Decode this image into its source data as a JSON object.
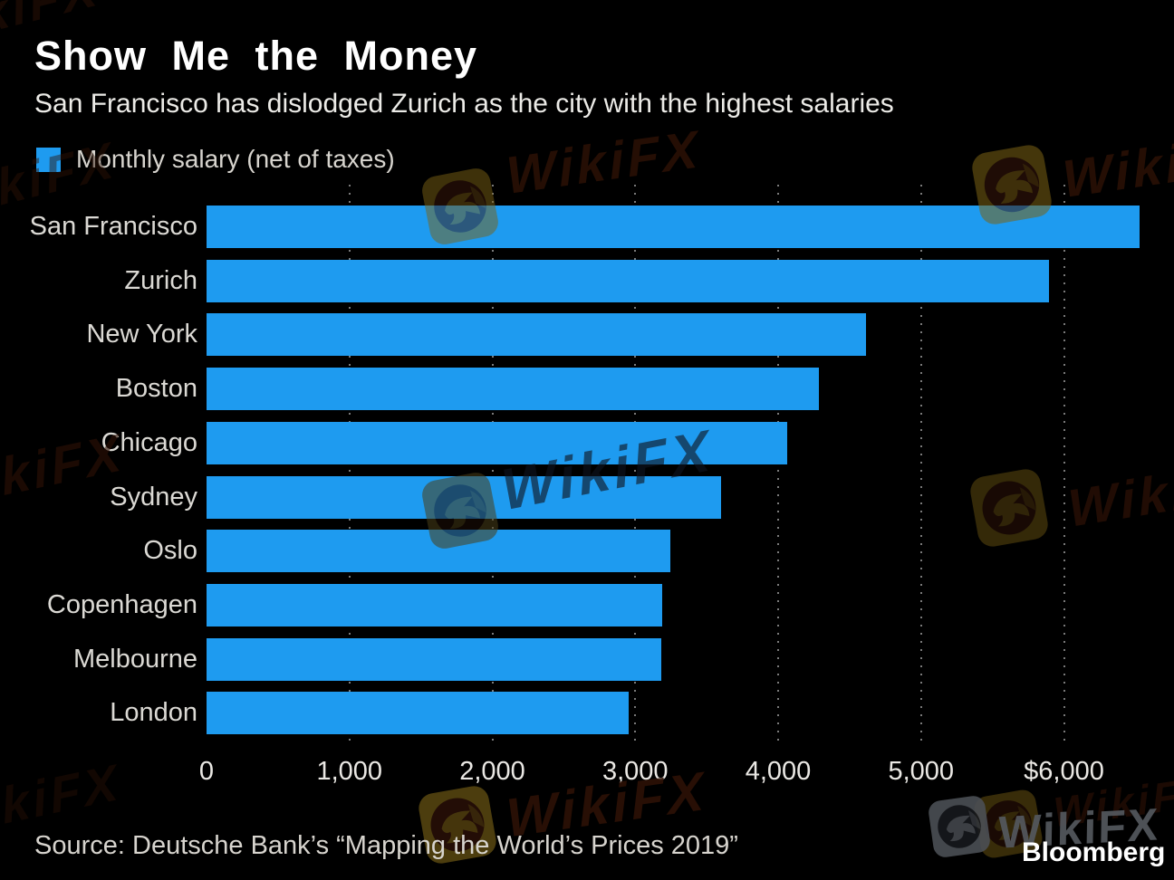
{
  "header": {
    "title": "Show Me the Money",
    "subtitle": "San Francisco has dislodged Zurich as the city with the highest salaries"
  },
  "legend": {
    "label": "Monthly salary (net of taxes)",
    "swatch_color": "#1e9bf0"
  },
  "chart_data": {
    "type": "bar",
    "orientation": "horizontal",
    "title": "Show Me the Money",
    "subtitle": "San Francisco has dislodged Zurich as the city with the highest salaries",
    "series_name": "Monthly salary (net of taxes)",
    "categories": [
      "San Francisco",
      "Zurich",
      "New York",
      "Boston",
      "Chicago",
      "Sydney",
      "Oslo",
      "Copenhagen",
      "Melbourne",
      "London"
    ],
    "values": [
      6526,
      5896,
      4612,
      4288,
      4062,
      3599,
      3246,
      3190,
      3181,
      2956
    ],
    "xlabel": "",
    "ylabel": "",
    "xlim": [
      0,
      6770
    ],
    "x_ticks": [
      {
        "value": 0,
        "label": "0"
      },
      {
        "value": 1000,
        "label": "1,000"
      },
      {
        "value": 2000,
        "label": "2,000"
      },
      {
        "value": 3000,
        "label": "3,000"
      },
      {
        "value": 4000,
        "label": "4,000"
      },
      {
        "value": 5000,
        "label": "5,000"
      },
      {
        "value": 6000,
        "label": "$6,000"
      }
    ],
    "bar_color": "#1e9bf0",
    "grid": "vertical-dotted",
    "gridline_color": "#7a7a7a",
    "legend_position": "top-left"
  },
  "footer": {
    "source": "Source: Deutsche Bank’s “Mapping the World’s Prices 2019”",
    "brand": "Bloomberg"
  },
  "watermark": {
    "text": "WikiFX"
  },
  "colors": {
    "background": "#000000",
    "title_text": "#ffffff",
    "axis_text": "#eae8e4",
    "bar": "#1e9bf0"
  }
}
